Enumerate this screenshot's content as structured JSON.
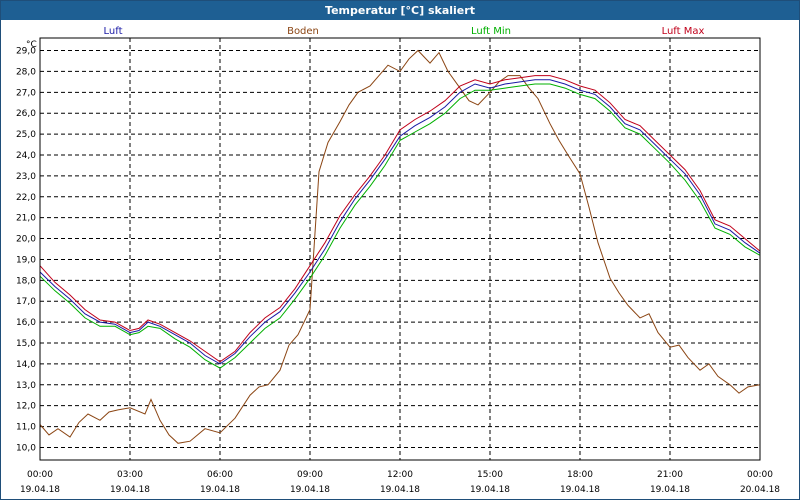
{
  "window": {
    "title": "Temperatur [°C] skaliert"
  },
  "chart_data": {
    "type": "line",
    "title": "Temperatur [°C] skaliert",
    "ylabel": "°C",
    "xlabel": "",
    "ylim": [
      9.4,
      29.6
    ],
    "xlim": [
      0,
      24
    ],
    "grid": true,
    "yticks": [
      "10,0",
      "11,0",
      "12,0",
      "13,0",
      "14,0",
      "15,0",
      "16,0",
      "17,0",
      "18,0",
      "19,0",
      "20,0",
      "21,0",
      "22,0",
      "23,0",
      "24,0",
      "25,0",
      "26,0",
      "27,0",
      "28,0",
      "29,0"
    ],
    "ytick_values": [
      10,
      11,
      12,
      13,
      14,
      15,
      16,
      17,
      18,
      19,
      20,
      21,
      22,
      23,
      24,
      25,
      26,
      27,
      28,
      29
    ],
    "xticks": [
      {
        "hour": 0,
        "time": "00:00",
        "date": "19.04.18"
      },
      {
        "hour": 3,
        "time": "03:00",
        "date": "19.04.18"
      },
      {
        "hour": 6,
        "time": "06:00",
        "date": "19.04.18"
      },
      {
        "hour": 9,
        "time": "09:00",
        "date": "19.04.18"
      },
      {
        "hour": 12,
        "time": "12:00",
        "date": "19.04.18"
      },
      {
        "hour": 15,
        "time": "15:00",
        "date": "19.04.18"
      },
      {
        "hour": 18,
        "time": "18:00",
        "date": "19.04.18"
      },
      {
        "hour": 21,
        "time": "21:00",
        "date": "19.04.18"
      },
      {
        "hour": 24,
        "time": "00:00",
        "date": "20.04.18"
      }
    ],
    "series": [
      {
        "name": "Luft",
        "color": "#1a1aa6",
        "x": [
          0,
          0.5,
          1,
          1.5,
          2,
          2.5,
          3,
          3.3,
          3.6,
          4,
          4.5,
          5,
          5.5,
          6,
          6.5,
          7,
          7.5,
          8,
          8.5,
          9,
          9.5,
          10,
          10.5,
          11,
          11.5,
          12,
          12.5,
          13,
          13.5,
          14,
          14.5,
          15,
          15.5,
          16,
          16.5,
          17,
          17.5,
          18,
          18.5,
          19,
          19.5,
          20,
          20.5,
          21,
          21.5,
          22,
          22.5,
          23,
          23.5,
          24
        ],
        "values": [
          18.4,
          17.7,
          17.1,
          16.4,
          16.0,
          15.9,
          15.5,
          15.6,
          16.0,
          15.8,
          15.4,
          15.0,
          14.4,
          14.0,
          14.5,
          15.3,
          16.0,
          16.5,
          17.4,
          18.4,
          19.5,
          20.8,
          21.9,
          22.8,
          23.8,
          24.9,
          25.4,
          25.8,
          26.3,
          27.0,
          27.4,
          27.2,
          27.4,
          27.5,
          27.6,
          27.6,
          27.4,
          27.1,
          26.9,
          26.3,
          25.5,
          25.2,
          24.5,
          23.8,
          23.1,
          22.1,
          20.7,
          20.4,
          19.8,
          19.3
        ]
      },
      {
        "name": "Boden",
        "color": "#8b4513",
        "x": [
          0,
          0.3,
          0.6,
          1,
          1.3,
          1.6,
          2,
          2.3,
          2.6,
          3,
          3.5,
          3.7,
          4,
          4.3,
          4.6,
          5,
          5.5,
          6,
          6.5,
          7,
          7.3,
          7.6,
          8,
          8.3,
          8.6,
          9,
          9.3,
          9.6,
          10,
          10.3,
          10.6,
          11,
          11.3,
          11.6,
          12,
          12.3,
          12.6,
          13,
          13.3,
          13.6,
          14,
          14.3,
          14.6,
          15,
          15.3,
          15.6,
          16,
          16.3,
          16.6,
          17,
          17.3,
          17.6,
          18,
          18.3,
          18.6,
          19,
          19.3,
          19.6,
          20,
          20.3,
          20.6,
          21,
          21.3,
          21.6,
          22,
          22.3,
          22.6,
          23,
          23.3,
          23.6,
          24
        ],
        "values": [
          11.1,
          10.6,
          10.9,
          10.5,
          11.2,
          11.6,
          11.3,
          11.7,
          11.8,
          11.9,
          11.6,
          12.3,
          11.3,
          10.6,
          10.2,
          10.3,
          10.9,
          10.7,
          11.4,
          12.5,
          12.9,
          13.0,
          13.7,
          14.9,
          15.4,
          16.6,
          23.2,
          24.6,
          25.6,
          26.4,
          27.0,
          27.3,
          27.8,
          28.3,
          28.0,
          28.6,
          29.0,
          28.4,
          28.9,
          28.0,
          27.2,
          26.6,
          26.4,
          27.0,
          27.5,
          27.8,
          27.8,
          27.2,
          26.7,
          25.5,
          24.7,
          24.0,
          23.1,
          21.5,
          19.8,
          18.1,
          17.4,
          16.8,
          16.2,
          16.4,
          15.5,
          14.8,
          14.9,
          14.3,
          13.7,
          14.0,
          13.4,
          13.0,
          12.6,
          12.9,
          13.0
        ]
      },
      {
        "name": "Luft Min",
        "color": "#00b000",
        "x": [
          0,
          0.5,
          1,
          1.5,
          2,
          2.5,
          3,
          3.3,
          3.6,
          4,
          4.5,
          5,
          5.5,
          6,
          6.5,
          7,
          7.5,
          8,
          8.5,
          9,
          9.5,
          10,
          10.5,
          11,
          11.5,
          12,
          12.5,
          13,
          13.5,
          14,
          14.5,
          15,
          15.5,
          16,
          16.5,
          17,
          17.5,
          18,
          18.5,
          19,
          19.5,
          20,
          20.5,
          21,
          21.5,
          22,
          22.5,
          23,
          23.5,
          24
        ],
        "values": [
          18.2,
          17.5,
          16.9,
          16.2,
          15.8,
          15.8,
          15.4,
          15.5,
          15.8,
          15.7,
          15.2,
          14.8,
          14.2,
          13.8,
          14.3,
          15.0,
          15.7,
          16.2,
          17.1,
          18.1,
          19.2,
          20.5,
          21.6,
          22.5,
          23.5,
          24.7,
          25.1,
          25.5,
          26.0,
          26.7,
          27.1,
          27.1,
          27.2,
          27.3,
          27.4,
          27.4,
          27.2,
          26.9,
          26.7,
          26.1,
          25.3,
          25.0,
          24.3,
          23.6,
          22.8,
          21.8,
          20.5,
          20.2,
          19.6,
          19.2
        ]
      },
      {
        "name": "Luft Max",
        "color": "#c0001a",
        "x": [
          0,
          0.5,
          1,
          1.5,
          2,
          2.5,
          3,
          3.3,
          3.6,
          4,
          4.5,
          5,
          5.5,
          6,
          6.5,
          7,
          7.5,
          8,
          8.5,
          9,
          9.5,
          10,
          10.5,
          11,
          11.5,
          12,
          12.5,
          13,
          13.5,
          14,
          14.5,
          15,
          15.5,
          16,
          16.5,
          17,
          17.5,
          18,
          18.5,
          19,
          19.5,
          20,
          20.5,
          21,
          21.5,
          22,
          22.5,
          23,
          23.5,
          24
        ],
        "values": [
          18.7,
          17.9,
          17.3,
          16.6,
          16.1,
          16.0,
          15.6,
          15.7,
          16.1,
          15.9,
          15.5,
          15.1,
          14.6,
          14.1,
          14.6,
          15.5,
          16.2,
          16.7,
          17.6,
          18.7,
          19.8,
          21.1,
          22.1,
          23.0,
          24.0,
          25.2,
          25.7,
          26.1,
          26.6,
          27.3,
          27.6,
          27.4,
          27.6,
          27.7,
          27.8,
          27.8,
          27.6,
          27.3,
          27.1,
          26.5,
          25.7,
          25.4,
          24.7,
          24.0,
          23.3,
          22.3,
          20.9,
          20.6,
          20.0,
          19.4
        ]
      }
    ]
  }
}
